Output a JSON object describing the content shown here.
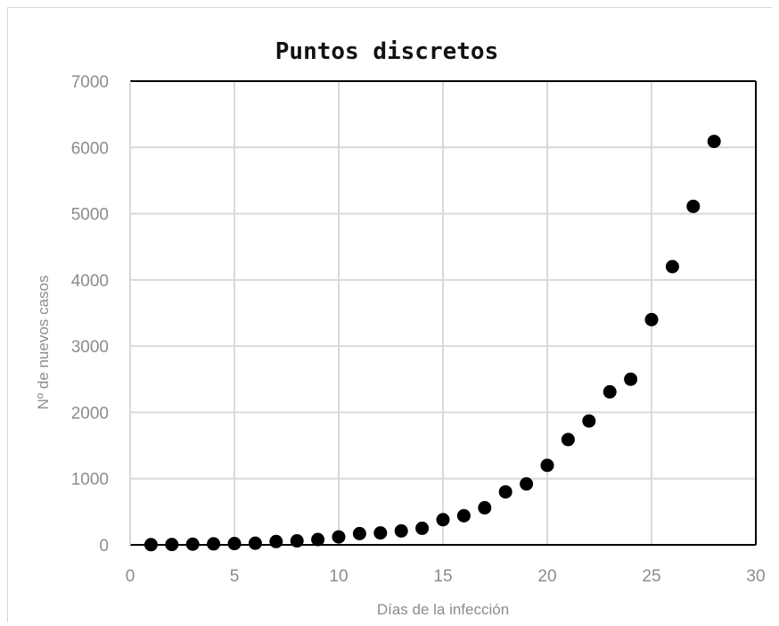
{
  "chart_data": {
    "type": "scatter",
    "title": "Puntos discretos",
    "xlabel": "Días de la infección",
    "ylabel": "Nº de nuevos casos",
    "xlim": [
      0,
      30
    ],
    "ylim": [
      0,
      7000
    ],
    "xticks": [
      0,
      5,
      10,
      15,
      20,
      25,
      30
    ],
    "yticks": [
      0,
      1000,
      2000,
      3000,
      4000,
      5000,
      6000,
      7000
    ],
    "grid": true,
    "legend": "none",
    "marker_color": "#000000",
    "grid_color": "#d9d9d9",
    "series": [
      {
        "x": [
          1,
          2,
          3,
          4,
          5,
          6,
          7,
          8,
          9,
          10,
          11,
          12,
          13,
          14,
          15,
          16,
          17,
          18,
          19,
          20,
          21,
          22,
          23,
          24,
          25,
          26,
          27,
          28
        ],
        "y": [
          3,
          5,
          10,
          15,
          20,
          25,
          50,
          60,
          80,
          120,
          170,
          180,
          210,
          250,
          380,
          440,
          560,
          800,
          920,
          1200,
          1590,
          1870,
          2310,
          2500,
          3400,
          4200,
          5110,
          6090
        ]
      }
    ]
  }
}
